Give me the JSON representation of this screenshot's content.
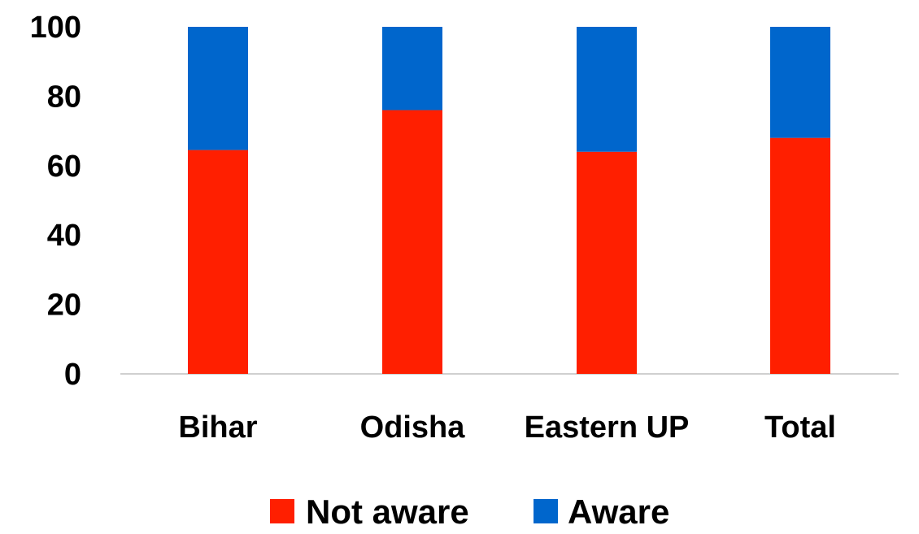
{
  "chart_data": {
    "type": "bar",
    "stacked": true,
    "categories": [
      "Bihar",
      "Odisha",
      "Eastern UP",
      "Total"
    ],
    "series": [
      {
        "name": "Not aware",
        "color": "#ff1f00",
        "values": [
          64.5,
          76,
          64,
          68
        ]
      },
      {
        "name": "Aware",
        "color": "#0066cc",
        "values": [
          35.5,
          24,
          36,
          32
        ]
      }
    ],
    "yticks": [
      0,
      20,
      40,
      60,
      80,
      100
    ],
    "ylim": [
      0,
      100
    ],
    "grid": false,
    "legend_position": "bottom",
    "title": "",
    "xlabel": "",
    "ylabel": ""
  }
}
